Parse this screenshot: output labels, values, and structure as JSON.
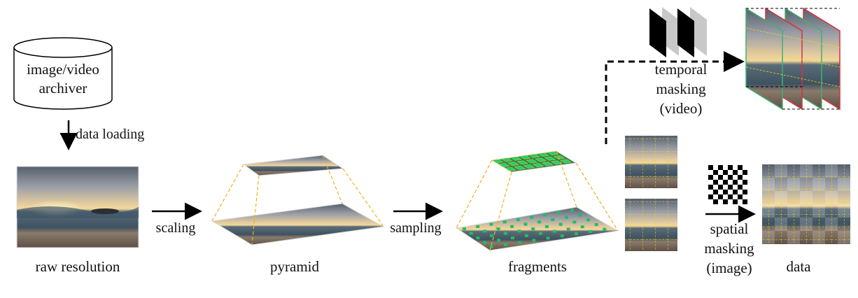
{
  "labels": {
    "archiver_line1": "image/video",
    "archiver_line2": "archiver",
    "data_loading": "data loading",
    "scaling": "scaling",
    "sampling": "sampling",
    "temporal_line1": "temporal",
    "temporal_line2": "masking",
    "temporal_line3": "(video)",
    "spatial_line1": "spatial",
    "spatial_line2": "masking",
    "spatial_line3": "(image)",
    "raw_resolution": "raw resolution",
    "pyramid": "pyramid",
    "fragments": "fragments",
    "data": "data"
  },
  "colors": {
    "guide_dash": "#f0b01e",
    "grid_dash": "#f2d21c",
    "patch_green": "#1fbf5f",
    "frame_green": "#3cb371",
    "frame_red": "#d9303a",
    "sky_top": "#6b7a8c",
    "sky_mid": "#a9a3a0",
    "sun": "#f4d08a",
    "sea": "#4d5f6a",
    "sand": "#7a6a5c"
  },
  "icons": {
    "archiver": "database-cylinder-icon",
    "temporal": "temporal-frames-icon",
    "spatial": "checkerboard-mask-icon"
  }
}
